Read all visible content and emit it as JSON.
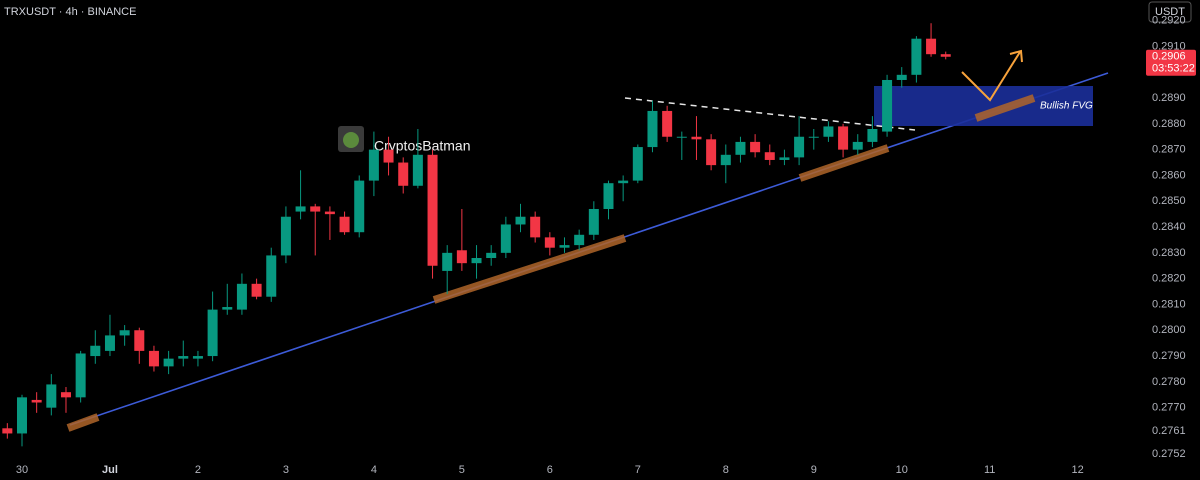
{
  "chart_data": {
    "type": "candlestick",
    "title": "TRXUSDT · 4h · BINANCE",
    "currency": "USDT",
    "watermark": "CryptosBatman",
    "fvg_label": "Bullish FVG",
    "last_price": 0.2906,
    "countdown": "03:53:22",
    "up_color": "#089981",
    "down_color": "#f23645",
    "x": [
      -4,
      0,
      4,
      8,
      12,
      16,
      20,
      24,
      28,
      32,
      36,
      40,
      44,
      48,
      52,
      56,
      60,
      64,
      68,
      72,
      76,
      80,
      84,
      88,
      92,
      96,
      100,
      104,
      108,
      112,
      116,
      120,
      124,
      128,
      132,
      136,
      140,
      144,
      148,
      152,
      156,
      160,
      164,
      168,
      172,
      176,
      180,
      184,
      188,
      192,
      196,
      200,
      204,
      208,
      212,
      216,
      220,
      224,
      228,
      232,
      236,
      240,
      244,
      248,
      252
    ],
    "open": [
      0.2762,
      0.276,
      0.2773,
      0.277,
      0.2776,
      0.2774,
      0.279,
      0.2792,
      0.2798,
      0.28,
      0.2792,
      0.2786,
      0.2789,
      0.2789,
      0.279,
      0.2808,
      0.2808,
      0.2818,
      0.2813,
      0.2829,
      0.2846,
      0.2848,
      0.2846,
      0.2844,
      0.2838,
      0.2858,
      0.287,
      0.2865,
      0.2856,
      0.2868,
      0.2823,
      0.2831,
      0.2826,
      0.2828,
      0.283,
      0.2841,
      0.2844,
      0.2836,
      0.2832,
      0.2833,
      0.2837,
      0.2847,
      0.2857,
      0.2858,
      0.2871,
      0.2885,
      0.2875,
      0.2875,
      0.2874,
      0.2864,
      0.2868,
      0.2873,
      0.2869,
      0.2866,
      0.2867,
      0.2875,
      0.2875,
      0.2879,
      0.287,
      0.2873,
      0.2877,
      0.2897,
      0.2899,
      0.2913,
      0.2907
    ],
    "high": [
      0.2764,
      0.2775,
      0.2776,
      0.2783,
      0.2778,
      0.2792,
      0.28,
      0.2806,
      0.2802,
      0.2801,
      0.2794,
      0.2792,
      0.2796,
      0.2792,
      0.2815,
      0.2818,
      0.2822,
      0.282,
      0.2832,
      0.2848,
      0.2862,
      0.2849,
      0.2848,
      0.2846,
      0.286,
      0.2877,
      0.2875,
      0.2867,
      0.2878,
      0.287,
      0.2833,
      0.2847,
      0.2833,
      0.2833,
      0.2844,
      0.2849,
      0.2846,
      0.2838,
      0.2836,
      0.2839,
      0.285,
      0.2858,
      0.286,
      0.2872,
      0.2889,
      0.2887,
      0.2877,
      0.2883,
      0.2876,
      0.2872,
      0.2875,
      0.2876,
      0.2872,
      0.287,
      0.2883,
      0.2878,
      0.2881,
      0.288,
      0.2876,
      0.2883,
      0.2899,
      0.2902,
      0.2914,
      0.2919,
      0.2908
    ],
    "low": [
      0.2758,
      0.2755,
      0.2768,
      0.2767,
      0.2768,
      0.2772,
      0.2787,
      0.279,
      0.2794,
      0.2787,
      0.2784,
      0.2783,
      0.2786,
      0.2786,
      0.2788,
      0.2806,
      0.2806,
      0.2812,
      0.2811,
      0.2826,
      0.2843,
      0.2829,
      0.2835,
      0.2837,
      0.2836,
      0.2852,
      0.286,
      0.2853,
      0.2855,
      0.282,
      0.2814,
      0.2823,
      0.282,
      0.2825,
      0.2828,
      0.2838,
      0.2834,
      0.2829,
      0.283,
      0.2831,
      0.2835,
      0.2843,
      0.285,
      0.2857,
      0.2869,
      0.2873,
      0.2866,
      0.2866,
      0.2862,
      0.2857,
      0.2865,
      0.2867,
      0.2864,
      0.2864,
      0.2864,
      0.287,
      0.2873,
      0.2867,
      0.2868,
      0.2871,
      0.2875,
      0.2894,
      0.2896,
      0.2906,
      0.2905
    ],
    "close": [
      0.276,
      0.2774,
      0.2772,
      0.2779,
      0.2774,
      0.2791,
      0.2794,
      0.2798,
      0.28,
      0.2792,
      0.2786,
      0.2789,
      0.279,
      0.279,
      0.2808,
      0.2809,
      0.2818,
      0.2813,
      0.2829,
      0.2844,
      0.2848,
      0.2846,
      0.2845,
      0.2838,
      0.2858,
      0.287,
      0.2865,
      0.2856,
      0.2868,
      0.2825,
      0.283,
      0.2826,
      0.2828,
      0.283,
      0.2841,
      0.2844,
      0.2836,
      0.2832,
      0.2833,
      0.2837,
      0.2847,
      0.2857,
      0.2858,
      0.2871,
      0.2885,
      0.2875,
      0.2875,
      0.2874,
      0.2864,
      0.2868,
      0.2873,
      0.2869,
      0.2866,
      0.2867,
      0.2875,
      0.2875,
      0.2879,
      0.287,
      0.2873,
      0.2878,
      0.2897,
      0.2899,
      0.2913,
      0.2907,
      0.2906
    ],
    "xlim": [
      -6,
      305
    ],
    "xticks": [
      {
        "value": 0,
        "label": "30"
      },
      {
        "value": 24,
        "label": "Jul"
      },
      {
        "value": 48,
        "label": "2"
      },
      {
        "value": 72,
        "label": "3"
      },
      {
        "value": 96,
        "label": "4"
      },
      {
        "value": 120,
        "label": "5"
      },
      {
        "value": 144,
        "label": "6"
      },
      {
        "value": 168,
        "label": "7"
      },
      {
        "value": 192,
        "label": "8"
      },
      {
        "value": 216,
        "label": "9"
      },
      {
        "value": 240,
        "label": "10"
      },
      {
        "value": 264,
        "label": "11"
      },
      {
        "value": 288,
        "label": "12"
      }
    ],
    "ylim": [
      0.2747,
      0.2928
    ],
    "yticks": [
      0.2752,
      0.2761,
      {
        "value": 0.277,
        "label": "0.2770"
      },
      {
        "value": 0.278,
        "label": "0.2780"
      },
      {
        "value": 0.279,
        "label": "0.2790"
      },
      {
        "value": 0.28,
        "label": "0.2800"
      },
      {
        "value": 0.281,
        "label": "0.2810"
      },
      {
        "value": 0.282,
        "label": "0.2820"
      },
      {
        "value": 0.283,
        "label": "0.2830"
      },
      {
        "value": 0.284,
        "label": "0.2840"
      },
      {
        "value": 0.285,
        "label": "0.2850"
      },
      {
        "value": 0.286,
        "label": "0.2860"
      },
      {
        "value": 0.287,
        "label": "0.2870"
      },
      {
        "value": 0.288,
        "label": "0.2880"
      },
      {
        "value": 0.289,
        "label": "0.2890"
      },
      {
        "value": 0.291,
        "label": "0.2910"
      },
      {
        "value": 0.292,
        "label": "0.2920"
      }
    ]
  }
}
